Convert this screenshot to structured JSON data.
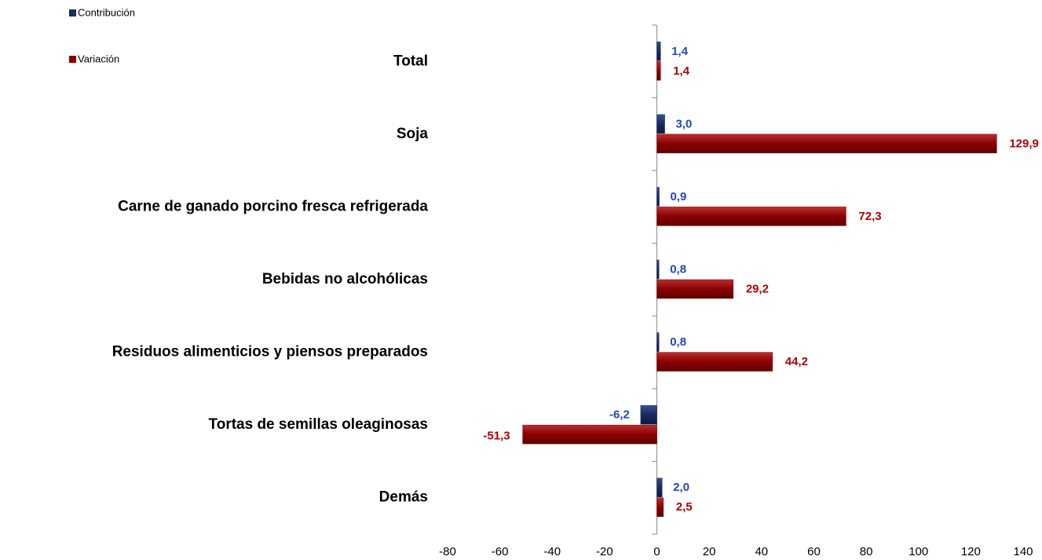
{
  "chart_data": {
    "type": "hbar",
    "categories": [
      "Total",
      "Soja",
      "Carne de ganado porcino fresca refrigerada",
      "Bebidas no alcohólicas",
      "Residuos alimenticios y piensos preparados",
      "Tortas de semillas oleaginosas",
      "Demás"
    ],
    "series": [
      {
        "name": "Contribución",
        "color": "#1b2a60",
        "label_color": "#1f47b8",
        "values": [
          1.4,
          3.0,
          0.9,
          0.8,
          0.8,
          -6.2,
          2.0
        ],
        "value_labels": [
          "1,4",
          "3,0",
          "0,9",
          "0,8",
          "0,8",
          "-6,2",
          "2,0"
        ]
      },
      {
        "name": "Variación",
        "color": "#8b0000",
        "label_color": "#b00000",
        "values": [
          1.4,
          129.9,
          72.3,
          29.2,
          44.2,
          -51.3,
          2.5
        ],
        "value_labels": [
          "1,4",
          "129,9",
          "72,3",
          "29,2",
          "44,2",
          "-51,3",
          "2,5"
        ]
      }
    ],
    "xlim": [
      -80,
      140
    ],
    "xticks": [
      -80,
      -60,
      -40,
      -20,
      0,
      20,
      40,
      60,
      80,
      100,
      120,
      140
    ],
    "legend": "top-left",
    "grid": false
  }
}
